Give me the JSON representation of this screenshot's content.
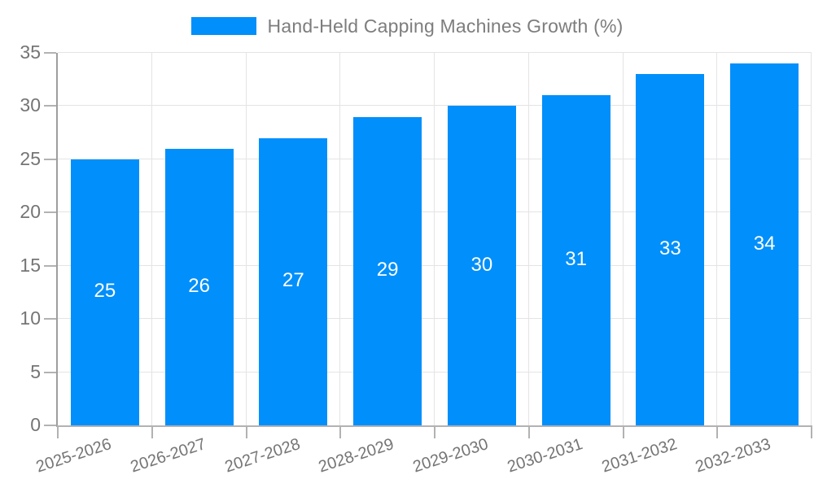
{
  "legend": {
    "series_label": "Hand-Held Capping Machines Growth (%)"
  },
  "chart_data": {
    "type": "bar",
    "title": "Hand-Held Capping Machines Growth (%)",
    "categories": [
      "2025-2026",
      "2026-2027",
      "2027-2028",
      "2028-2029",
      "2029-2030",
      "2030-2031",
      "2031-2032",
      "2032-2033"
    ],
    "values": [
      25,
      26,
      27,
      29,
      30,
      31,
      33,
      34
    ],
    "value_labels": [
      "25",
      "26",
      "27",
      "29",
      "30",
      "31",
      "33",
      "34"
    ],
    "xlabel": "",
    "ylabel": "",
    "ylim": [
      0,
      35
    ],
    "yticks": [
      0,
      5,
      10,
      15,
      20,
      25,
      30,
      35
    ],
    "grid": "on",
    "legend_position": "top-center",
    "colors": {
      "bar": "#008FFB",
      "grid": "#e4e4e4",
      "axis_spine": "#9e9e9e",
      "axis_line": "#b2b2b2",
      "axis_label": "#757575",
      "value_label": "#ffffff",
      "legend_text": "#7d7d7d",
      "background": "#ffffff"
    }
  }
}
